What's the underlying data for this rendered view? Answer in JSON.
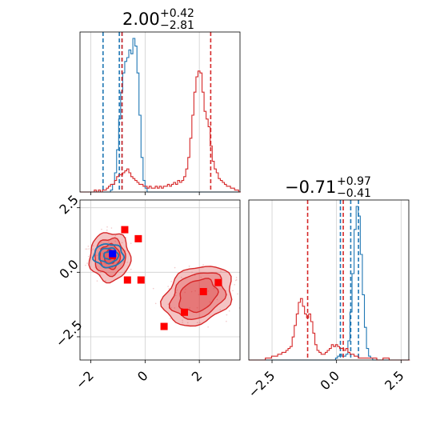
{
  "chart_data": {
    "type": "corner",
    "colors": {
      "blue": "#1f77b4",
      "red": "#d62728",
      "marker_red": "#ff0000",
      "marker_blue": "#0000ff",
      "grid": "#cfcfcf"
    },
    "parameters": [
      {
        "title_value": "2.00",
        "title_plus": "+0.42",
        "title_minus": "−2.81",
        "range": [
          -2.4,
          3.5
        ],
        "ticks": [
          {
            "value": -2,
            "label": "−2"
          },
          {
            "value": 0,
            "label": "0"
          },
          {
            "value": 2,
            "label": "2"
          }
        ]
      },
      {
        "title_value": "−0.71",
        "title_plus": "+0.97",
        "title_minus": "−0.41",
        "range": [
          -3.4,
          2.8
        ],
        "ticks": [
          {
            "value": -2.5,
            "label": "−2.5"
          },
          {
            "value": 0.0,
            "label": "0.0"
          },
          {
            "value": 2.5,
            "label": "2.5"
          }
        ]
      }
    ],
    "panels": [
      {
        "name": "hist-param-1",
        "type": "histogram",
        "series": [
          {
            "name": "",
            "color": "blue",
            "x_start": -2.4,
            "bin_width": 0.075,
            "counts": [
              0,
              0,
              0,
              0,
              0,
              0,
              0,
              0,
              0,
              0,
              0,
              0,
              0,
              0,
              0,
              1,
              4,
              10,
              22,
              38,
              52,
              62,
              68,
              70,
              74,
              72,
              80,
              76,
              62,
              40,
              18,
              6,
              2,
              0,
              0,
              0,
              0,
              0,
              0,
              0,
              0,
              0,
              0,
              0,
              0,
              0,
              0,
              0,
              0,
              0,
              0,
              0,
              0,
              0,
              0,
              0,
              0,
              0,
              0,
              0,
              0,
              0,
              0,
              0,
              0,
              0,
              0,
              0,
              0,
              0,
              0,
              0,
              0,
              0,
              0,
              0,
              0,
              0,
              0
            ],
            "quantile_lines": [
              -1.55,
              -0.95,
              -0.85
            ]
          },
          {
            "name": "",
            "color": "red",
            "x_start": -2.4,
            "bin_width": 0.075,
            "counts": [
              0,
              0,
              0,
              0,
              0,
              0,
              0,
              1,
              0,
              1,
              0,
              1,
              1,
              2,
              3,
              4,
              4,
              6,
              8,
              9,
              9,
              10,
              11,
              12,
              10,
              8,
              7,
              6,
              5,
              4,
              4,
              3,
              3,
              2,
              3,
              2,
              2,
              3,
              2,
              3,
              2,
              3,
              3,
              4,
              3,
              4,
              5,
              4,
              6,
              5,
              6,
              8,
              12,
              18,
              28,
              40,
              52,
              60,
              63,
              62,
              52,
              42,
              38,
              34,
              24,
              16,
              12,
              10,
              7,
              6,
              5,
              4,
              3,
              3,
              2,
              2,
              1,
              1,
              0
            ],
            "quantile_lines": [
              -0.85,
              2.42
            ]
          }
        ]
      },
      {
        "name": "hist-param-2",
        "type": "histogram",
        "series": [
          {
            "name": "",
            "color": "blue",
            "x_start": -3.4,
            "bin_width": 0.08,
            "counts": [
              0,
              0,
              0,
              0,
              0,
              0,
              0,
              0,
              0,
              0,
              0,
              0,
              0,
              0,
              0,
              0,
              0,
              0,
              0,
              0,
              0,
              0,
              0,
              0,
              0,
              0,
              0,
              0,
              0,
              0,
              0,
              0,
              0,
              0,
              0,
              0,
              0,
              0,
              0,
              0,
              0,
              0,
              1,
              2,
              3,
              2,
              2,
              3,
              10,
              25,
              45,
              68,
              80,
              75,
              55,
              34,
              17,
              6,
              2,
              1,
              0,
              0,
              0,
              0,
              0,
              0,
              0,
              0,
              0,
              0,
              0,
              0,
              0,
              0,
              0,
              0,
              0,
              0
            ],
            "quantile_lines": [
              0.15,
              0.55,
              0.85
            ]
          },
          {
            "name": "",
            "color": "red",
            "x_start": -3.4,
            "bin_width": 0.08,
            "counts": [
              0,
              0,
              0,
              0,
              0,
              0,
              0,
              0,
              1,
              1,
              1,
              2,
              2,
              2,
              3,
              3,
              4,
              4,
              5,
              6,
              7,
              12,
              18,
              24,
              30,
              32,
              28,
              24,
              22,
              24,
              20,
              14,
              8,
              5,
              4,
              3,
              3,
              4,
              5,
              6,
              8,
              7,
              8,
              7,
              6,
              6,
              5,
              6,
              4,
              3,
              3,
              2,
              2,
              1,
              1,
              1,
              1,
              1,
              1,
              1,
              1,
              1,
              0,
              0,
              0,
              1,
              1,
              1,
              0,
              0,
              0,
              0,
              0,
              0,
              0,
              0,
              0,
              0
            ],
            "quantile_lines": [
              -1.12,
              0.26
            ]
          }
        ]
      },
      {
        "name": "scatter-2d",
        "type": "contour",
        "blobs": [
          {
            "center": [
              -1.3,
              0.6
            ],
            "axes": [
              0.75,
              0.95
            ],
            "angle": 0,
            "color": "red",
            "levels": [
              1.0,
              0.75,
              0.5,
              0.28
            ]
          },
          {
            "center": [
              1.95,
              -0.9
            ],
            "axes": [
              1.35,
              1.05
            ],
            "angle": 30,
            "color": "red",
            "levels": [
              1.0,
              0.78,
              0.55
            ]
          },
          {
            "center": [
              -1.35,
              0.65
            ],
            "axes": [
              0.55,
              0.45
            ],
            "angle": 0,
            "color": "blue",
            "levels": [
              1.0,
              0.65,
              0.32
            ]
          }
        ],
        "red_markers": [
          [
            -0.75,
            1.65
          ],
          [
            -0.25,
            1.3
          ],
          [
            -0.65,
            -0.3
          ],
          [
            -0.15,
            -0.3
          ],
          [
            0.7,
            -2.1
          ],
          [
            1.45,
            -1.55
          ],
          [
            2.15,
            -0.75
          ],
          [
            2.7,
            -0.4
          ],
          [
            -1.2,
            0.65
          ]
        ],
        "blue_markers": [
          [
            -1.2,
            0.72
          ]
        ]
      }
    ]
  }
}
